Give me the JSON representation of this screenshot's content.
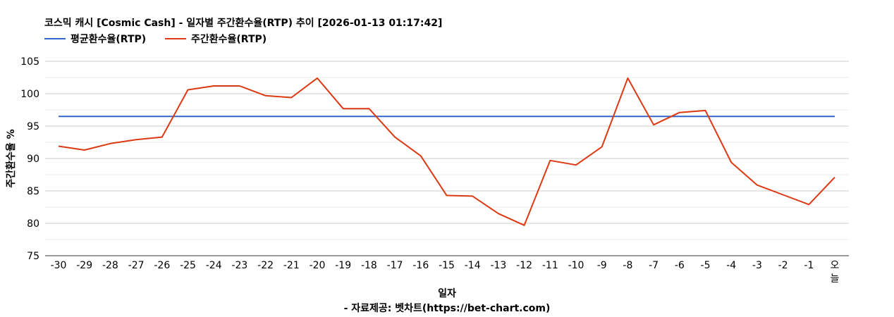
{
  "chart_data": {
    "type": "line",
    "title": "코스믹 캐시 [Cosmic Cash] - 일자별 주간환수율(RTP) 추이 [2026-01-13 01:17:42]",
    "xlabel": "일자",
    "ylabel": "주간환수율 %",
    "source": "- 자료제공: 벳차트(https://bet-chart.com)",
    "categories": [
      "-30",
      "-29",
      "-28",
      "-27",
      "-26",
      "-25",
      "-24",
      "-23",
      "-22",
      "-21",
      "-20",
      "-19",
      "-18",
      "-17",
      "-16",
      "-15",
      "-14",
      "-13",
      "-12",
      "-11",
      "-10",
      "-9",
      "-8",
      "-7",
      "-6",
      "-5",
      "-4",
      "-3",
      "-2",
      "-1",
      "오늘"
    ],
    "yticks": [
      75,
      80,
      85,
      90,
      95,
      100,
      105
    ],
    "ylim": [
      75,
      105
    ],
    "grid": true,
    "legend_position": "top-left",
    "series": [
      {
        "name": "평균환수율(RTP)",
        "color": "#3366cc",
        "values": [
          96.5,
          96.5,
          96.5,
          96.5,
          96.5,
          96.5,
          96.5,
          96.5,
          96.5,
          96.5,
          96.5,
          96.5,
          96.5,
          96.5,
          96.5,
          96.5,
          96.5,
          96.5,
          96.5,
          96.5,
          96.5,
          96.5,
          96.5,
          96.5,
          96.5,
          96.5,
          96.5,
          96.5,
          96.5,
          96.5,
          96.5
        ]
      },
      {
        "name": "주간환수율(RTP)",
        "color": "#dc3912",
        "values": [
          91.9,
          91.3,
          92.3,
          92.9,
          93.3,
          100.6,
          101.2,
          101.2,
          99.7,
          99.4,
          102.4,
          97.7,
          97.7,
          93.3,
          90.4,
          84.3,
          84.2,
          81.5,
          79.7,
          89.7,
          89.0,
          91.8,
          102.4,
          95.2,
          97.1,
          97.4,
          89.4,
          85.9,
          84.4,
          82.9,
          87.1
        ]
      }
    ]
  }
}
